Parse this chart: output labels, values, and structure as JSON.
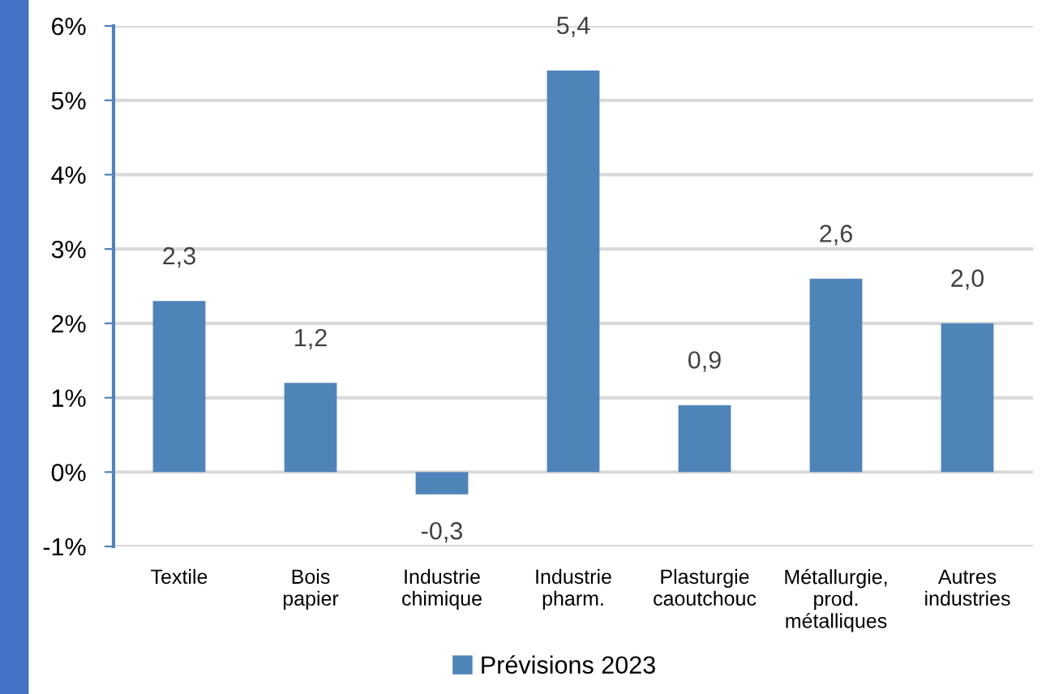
{
  "chart_data": {
    "type": "bar",
    "categories": [
      "Textile",
      "Bois\npapier",
      "Industrie\nchimique",
      "Industrie\npharm.",
      "Plasturgie\ncaoutchouc",
      "Métallurgie,\nprod.\nmétalliques",
      "Autres\nindustries"
    ],
    "series": [
      {
        "name": "Prévisions 2023",
        "color": "#4f84b8",
        "values": [
          2.3,
          1.2,
          -0.3,
          5.4,
          0.9,
          2.6,
          2.0
        ],
        "value_labels": [
          "2,3",
          "1,2",
          "-0,3",
          "5,4",
          "0,9",
          "2,6",
          "2,0"
        ]
      }
    ],
    "ylim": [
      -1,
      6
    ],
    "yticks": [
      {
        "value": -1,
        "label": "-1%"
      },
      {
        "value": 0,
        "label": "0%"
      },
      {
        "value": 1,
        "label": "1%"
      },
      {
        "value": 2,
        "label": "2%"
      },
      {
        "value": 3,
        "label": "3%"
      },
      {
        "value": 4,
        "label": "4%"
      },
      {
        "value": 5,
        "label": "5%"
      },
      {
        "value": 6,
        "label": "6%"
      }
    ],
    "grid": "y",
    "legend": "bottom"
  }
}
